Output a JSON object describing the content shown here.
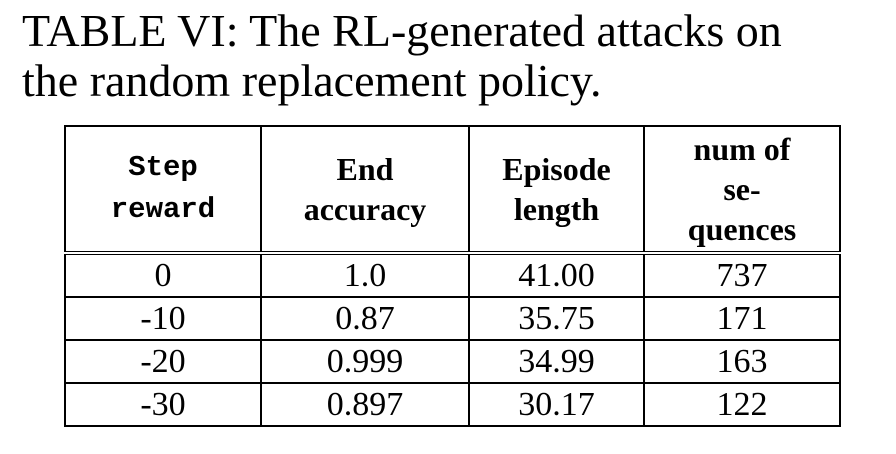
{
  "caption": {
    "line1": "TABLE VI: The RL-generated attacks on",
    "line2": "the random replacement policy."
  },
  "table": {
    "headers": [
      [
        "Step",
        "reward"
      ],
      [
        "End",
        "accuracy"
      ],
      [
        "Episode",
        "length"
      ],
      [
        "num of",
        "se-",
        "quences"
      ]
    ],
    "rows": [
      [
        "0",
        "1.0",
        "41.00",
        "737"
      ],
      [
        "-10",
        "0.87",
        "35.75",
        "171"
      ],
      [
        "-20",
        "0.999",
        "34.99",
        "163"
      ],
      [
        "-30",
        "0.897",
        "30.17",
        "122"
      ]
    ]
  }
}
